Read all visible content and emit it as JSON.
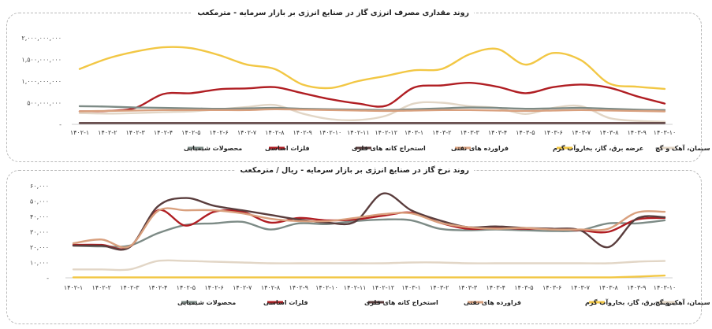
{
  "chart_data": [
    {
      "type": "line",
      "title": "روند مقداری مصرف انرژی گاز در صنایع انرژی بر بازار سرمایه - مترمکعب",
      "categories": [
        "۱۴۰۲-۱",
        "۱۴۰۲-۲",
        "۱۴۰۲-۳",
        "۱۴۰۲-۴",
        "۱۴۰۲-۵",
        "۱۴۰۲-۶",
        "۱۴۰۲-۷",
        "۱۴۰۲-۸",
        "۱۴۰۲-۹",
        "۱۴۰۲-۱۰",
        "۱۴۰۲-۱۱",
        "۱۴۰۲-۱۲",
        "۱۴۰۳-۱",
        "۱۴۰۳-۲",
        "۱۴۰۳-۳",
        "۱۴۰۳-۴",
        "۱۴۰۳-۵",
        "۱۴۰۳-۶",
        "۱۴۰۳-۷",
        "۱۴۰۳-۸",
        "۱۴۰۳-۹",
        "۱۴۰۳-۱۰"
      ],
      "ylim": [
        0,
        2000000000
      ],
      "yticks": [
        0,
        500000000,
        1000000000,
        1500000000,
        2000000000
      ],
      "ytick_labels": [
        "-",
        "۵۰۰,۰۰۰,۰۰۰",
        "۱,۰۰۰,۰۰۰,۰۰۰",
        "۱,۵۰۰,۰۰۰,۰۰۰",
        "۲,۰۰۰,۰۰۰,۰۰۰"
      ],
      "series": [
        {
          "name": "عرضه برق، گاز، بخاروآب گرم",
          "color": "#f2c744",
          "values": [
            1280000000,
            1520000000,
            1680000000,
            1780000000,
            1760000000,
            1600000000,
            1380000000,
            1280000000,
            920000000,
            840000000,
            1000000000,
            1120000000,
            1250000000,
            1280000000,
            1620000000,
            1740000000,
            1380000000,
            1650000000,
            1480000000,
            950000000,
            870000000,
            820000000
          ]
        },
        {
          "name": "فلزات اساسی",
          "color": "#b01e23",
          "values": [
            300000000,
            310000000,
            380000000,
            700000000,
            720000000,
            810000000,
            830000000,
            860000000,
            720000000,
            580000000,
            480000000,
            430000000,
            850000000,
            900000000,
            960000000,
            870000000,
            720000000,
            860000000,
            920000000,
            850000000,
            650000000,
            480000000
          ]
        },
        {
          "name": "سیمان، آهک و گچ",
          "color": "#e2d6c6",
          "values": [
            260000000,
            250000000,
            260000000,
            280000000,
            300000000,
            350000000,
            400000000,
            450000000,
            250000000,
            120000000,
            100000000,
            200000000,
            480000000,
            500000000,
            420000000,
            380000000,
            240000000,
            380000000,
            420000000,
            150000000,
            80000000,
            60000000
          ]
        },
        {
          "name": "محصولات شیمیایی",
          "color": "#7d8b86",
          "values": [
            420000000,
            410000000,
            390000000,
            380000000,
            370000000,
            360000000,
            370000000,
            380000000,
            360000000,
            350000000,
            340000000,
            330000000,
            350000000,
            370000000,
            390000000,
            380000000,
            360000000,
            370000000,
            380000000,
            360000000,
            340000000,
            330000000
          ]
        },
        {
          "name": "فراورده های نفتی",
          "color": "#d9a07e",
          "values": [
            300000000,
            310000000,
            320000000,
            330000000,
            330000000,
            330000000,
            330000000,
            350000000,
            340000000,
            330000000,
            320000000,
            310000000,
            320000000,
            330000000,
            330000000,
            320000000,
            310000000,
            320000000,
            330000000,
            320000000,
            310000000,
            300000000
          ]
        },
        {
          "name": "استخراج کانه های فلزی",
          "color": "#5a3d3d",
          "values": [
            30000000,
            30000000,
            30000000,
            30000000,
            30000000,
            30000000,
            30000000,
            30000000,
            30000000,
            30000000,
            30000000,
            30000000,
            30000000,
            30000000,
            30000000,
            30000000,
            30000000,
            30000000,
            30000000,
            30000000,
            30000000,
            30000000
          ]
        }
      ]
    },
    {
      "type": "line",
      "title": "روند نرخ گاز در صنایع انرژی بر بازار سرمایه - ریال / مترمکعب",
      "categories": [
        "۱۴۰۲-۱",
        "۱۴۰۲-۲",
        "۱۴۰۲-۳",
        "۱۴۰۲-۴",
        "۱۴۰۲-۵",
        "۱۴۰۲-۶",
        "۱۴۰۲-۷",
        "۱۴۰۲-۸",
        "۱۴۰۲-۹",
        "۱۴۰۲-۱۰",
        "۱۴۰۲-۱۱",
        "۱۴۰۲-۱۲",
        "۱۴۰۳-۱",
        "۱۴۰۳-۲",
        "۱۴۰۳-۳",
        "۱۴۰۳-۴",
        "۱۴۰۳-۵",
        "۱۴۰۳-۶",
        "۱۴۰۳-۷",
        "۱۴۰۳-۸",
        "۱۴۰۳-۹",
        "۱۴۰۳-۱۰"
      ],
      "ylim": [
        0,
        60000
      ],
      "yticks": [
        0,
        10000,
        20000,
        30000,
        40000,
        50000,
        60000
      ],
      "ytick_labels": [
        "-",
        "۱۰,۰۰۰",
        "۲۰,۰۰۰",
        "۳۰,۰۰۰",
        "۴۰,۰۰۰",
        "۵۰,۰۰۰",
        "۶۰,۰۰۰"
      ],
      "series": [
        {
          "name": "محصولات شیمیایی",
          "color": "#7d8b86",
          "values": [
            21000,
            20500,
            21000,
            29000,
            34500,
            35500,
            36500,
            31500,
            35500,
            35000,
            37000,
            38000,
            37500,
            32000,
            31000,
            31500,
            31000,
            30500,
            31000,
            35500,
            35500,
            37500
          ]
        },
        {
          "name": "فلزات اساسی",
          "color": "#b01e23",
          "values": [
            21500,
            21500,
            20000,
            44000,
            34000,
            43000,
            43000,
            36000,
            39000,
            37500,
            38000,
            40500,
            42500,
            36000,
            32000,
            32500,
            32000,
            32000,
            31000,
            30000,
            38000,
            39000
          ]
        },
        {
          "name": "استخراج کانه های فلزی",
          "color": "#5a3d3d",
          "values": [
            21000,
            21000,
            20000,
            46500,
            52000,
            47000,
            44000,
            41000,
            38000,
            36000,
            36500,
            55000,
            44000,
            37500,
            33000,
            33500,
            32500,
            32000,
            31000,
            20000,
            38500,
            39500
          ]
        },
        {
          "name": "فراورده های نفتی",
          "color": "#d9a07e",
          "values": [
            22500,
            25000,
            20500,
            43500,
            44000,
            44000,
            42000,
            38500,
            37000,
            37000,
            39000,
            41500,
            42000,
            36000,
            33000,
            32000,
            32500,
            31500,
            31500,
            32000,
            42500,
            43000
          ]
        },
        {
          "name": "عرضه برق، گاز، بخاروآب گرم",
          "color": "#f2c744",
          "values": [
            300,
            300,
            300,
            300,
            300,
            300,
            300,
            300,
            300,
            300,
            300,
            300,
            300,
            300,
            300,
            300,
            300,
            300,
            300,
            300,
            800,
            1500
          ]
        },
        {
          "name": "سیمان، آهک و گچ",
          "color": "#e2d6c6",
          "values": [
            5500,
            5500,
            5500,
            11000,
            11000,
            10500,
            10000,
            9500,
            9500,
            9500,
            9500,
            9500,
            10000,
            10000,
            9500,
            9500,
            9500,
            9500,
            9500,
            9500,
            10500,
            11000
          ]
        }
      ]
    }
  ],
  "legend1": [
    "محصولات شیمیایی",
    "فلزات اساسی",
    "استخراج کانه های فلزی",
    "فراورده های نفتی",
    "عرضه برق، گاز، بخاروآب گرم",
    "سیمان، آهک و گچ"
  ],
  "legend2": [
    "محصولات شیمیایی",
    "فلزات اساسی",
    "استخراج کانه های فلزی",
    "فراورده های نفتی",
    "عرضه برق، گاز، بخاروآب گرم",
    "سیمان، آهک و گچ"
  ]
}
